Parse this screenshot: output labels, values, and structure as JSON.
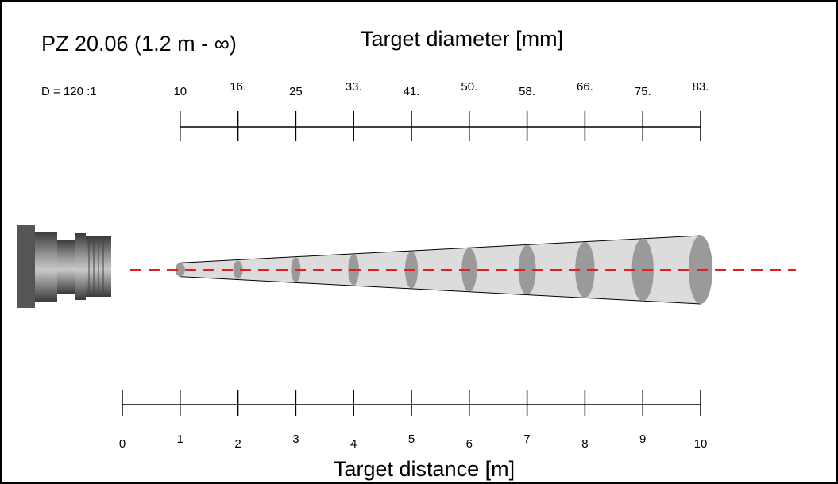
{
  "title": "PZ 20.06 (1.2 m - ∞)",
  "ratio_label": "D = 120 :1",
  "diameter_axis": {
    "label": "Target diameter [mm]",
    "ticks": [
      "10",
      "16.",
      "25",
      "33.",
      "41.",
      "50.",
      "58.",
      "66.",
      "75.",
      "83."
    ]
  },
  "distance_axis": {
    "label": "Target distance [m]",
    "ticks": [
      "0",
      "1",
      "2",
      "3",
      "4",
      "5",
      "6",
      "7",
      "8",
      "9",
      "10"
    ]
  },
  "spots": [
    {
      "distance_m": 1,
      "diameter_mm": 10
    },
    {
      "distance_m": 2,
      "diameter_mm": 16
    },
    {
      "distance_m": 3,
      "diameter_mm": 25
    },
    {
      "distance_m": 4,
      "diameter_mm": 33
    },
    {
      "distance_m": 5,
      "diameter_mm": 41
    },
    {
      "distance_m": 6,
      "diameter_mm": 50
    },
    {
      "distance_m": 7,
      "diameter_mm": 58
    },
    {
      "distance_m": 8,
      "diameter_mm": 66
    },
    {
      "distance_m": 9,
      "diameter_mm": 75
    },
    {
      "distance_m": 10,
      "diameter_mm": 83
    }
  ],
  "colors": {
    "axis": "#000000",
    "beam_fill": "#dcdcdc",
    "spot_fill": "#9a9a9a",
    "optical_axis": "#e02020",
    "sensor_body": "#7a7a7a"
  },
  "icons": {
    "sensor": "pyrometer-lens-icon"
  }
}
